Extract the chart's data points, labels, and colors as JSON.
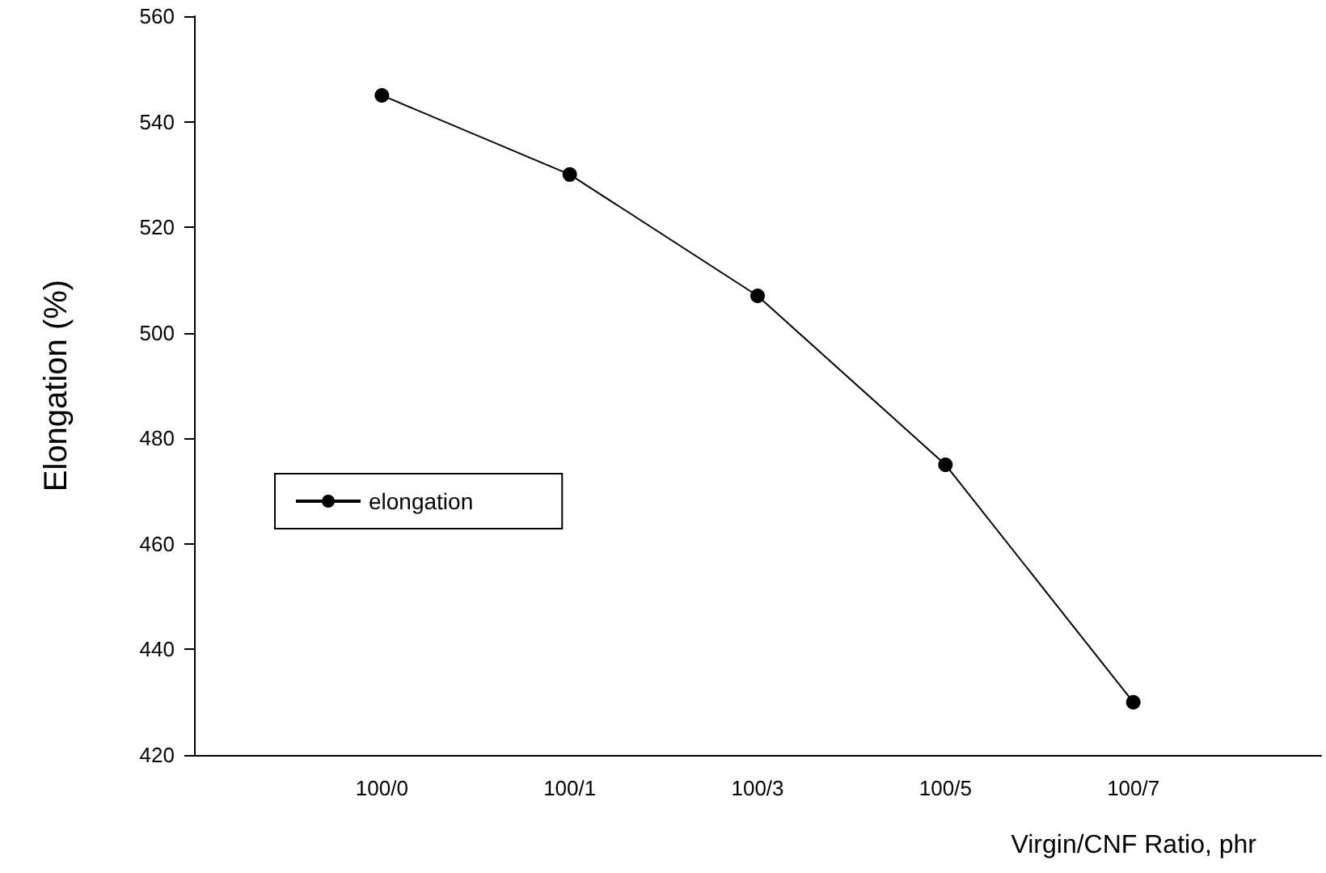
{
  "chart_data": {
    "type": "line",
    "xlabel": "Virgin/CNF Ratio, phr",
    "ylabel": "Elongation (%)",
    "categories": [
      null,
      "100/0",
      "100/1",
      "100/3",
      "100/5",
      "100/7",
      null
    ],
    "series": [
      {
        "name": "elongation",
        "color": "#000000",
        "values": [
          null,
          545,
          530,
          507,
          475,
          430,
          null
        ]
      }
    ],
    "ylim": [
      420,
      560
    ],
    "yticks": [
      420,
      440,
      460,
      480,
      500,
      520,
      540,
      560
    ],
    "marker": "circle",
    "line_style": "solid",
    "legend": "left",
    "grid": false
  }
}
